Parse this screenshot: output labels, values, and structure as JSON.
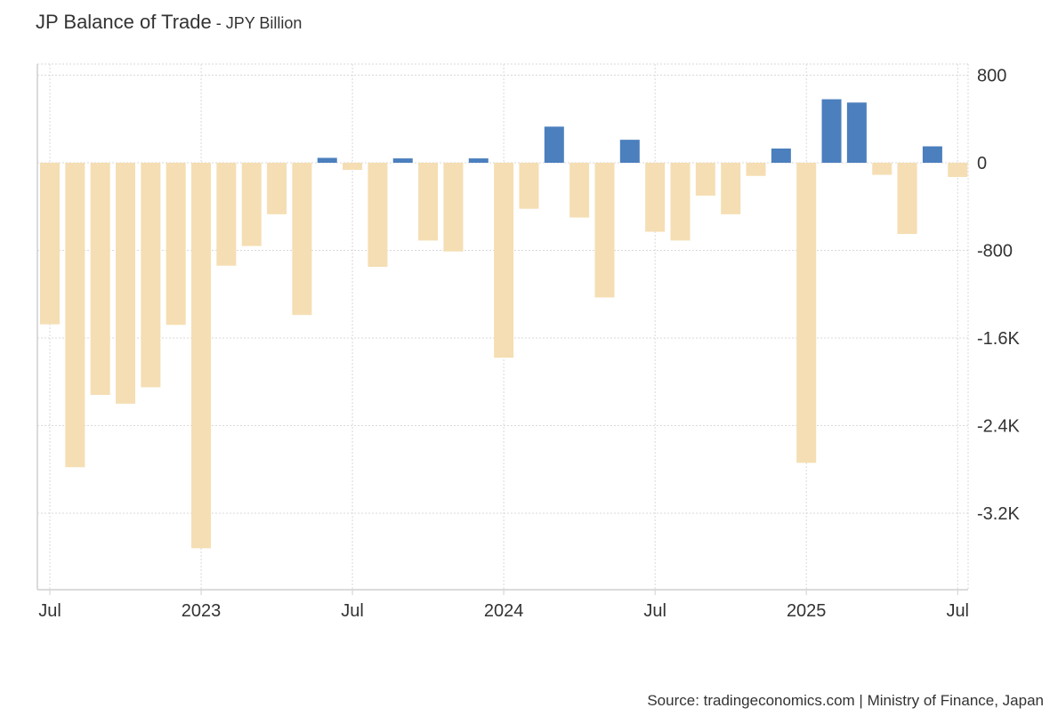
{
  "header": {
    "title": "JP Balance of Trade",
    "subtitle": " - JPY Billion"
  },
  "footer": {
    "source": "Source: tradingeconomics.com | Ministry of Finance, Japan"
  },
  "colors": {
    "positive": "#4b7fbd",
    "negative": "#f5deb3",
    "grid": "#d9d9d9",
    "axis": "#cfcfcf"
  },
  "chart_data": {
    "type": "bar",
    "ylim": [
      -3800,
      900
    ],
    "yticks": [
      {
        "value": 800,
        "label": "800"
      },
      {
        "value": 0,
        "label": "0"
      },
      {
        "value": -800,
        "label": "-800"
      },
      {
        "value": -1600,
        "label": "-1.6K"
      },
      {
        "value": -2400,
        "label": "-2.4K"
      },
      {
        "value": -3200,
        "label": "-3.2K"
      }
    ],
    "xticks": [
      {
        "index": 0,
        "label": "Jul"
      },
      {
        "index": 6,
        "label": "2023"
      },
      {
        "index": 12,
        "label": "Jul"
      },
      {
        "index": 18,
        "label": "2024"
      },
      {
        "index": 24,
        "label": "Jul"
      },
      {
        "index": 30,
        "label": "2025"
      },
      {
        "index": 36,
        "label": "Jul"
      }
    ],
    "categories": [
      "2022-07",
      "2022-08",
      "2022-09",
      "2022-10",
      "2022-11",
      "2022-12",
      "2023-01",
      "2023-02",
      "2023-03",
      "2023-04",
      "2023-05",
      "2023-06",
      "2023-07",
      "2023-08",
      "2023-09",
      "2023-10",
      "2023-11",
      "2023-12",
      "2024-01",
      "2024-02",
      "2024-03",
      "2024-04",
      "2024-05",
      "2024-06",
      "2024-07",
      "2024-08",
      "2024-09",
      "2024-10",
      "2024-11",
      "2024-12",
      "2025-01",
      "2025-02",
      "2025-03",
      "2025-04",
      "2025-05",
      "2025-06",
      "2025-07"
    ],
    "values": [
      -1475,
      -2780,
      -2120,
      -2200,
      -2050,
      -1480,
      -3520,
      -940,
      -760,
      -470,
      -1390,
      45,
      -65,
      -950,
      40,
      -710,
      -810,
      40,
      -1780,
      -420,
      330,
      -500,
      -1230,
      210,
      -630,
      -710,
      -300,
      -470,
      -120,
      130,
      -2740,
      580,
      550,
      -110,
      -650,
      150,
      -130
    ],
    "grid": true
  }
}
